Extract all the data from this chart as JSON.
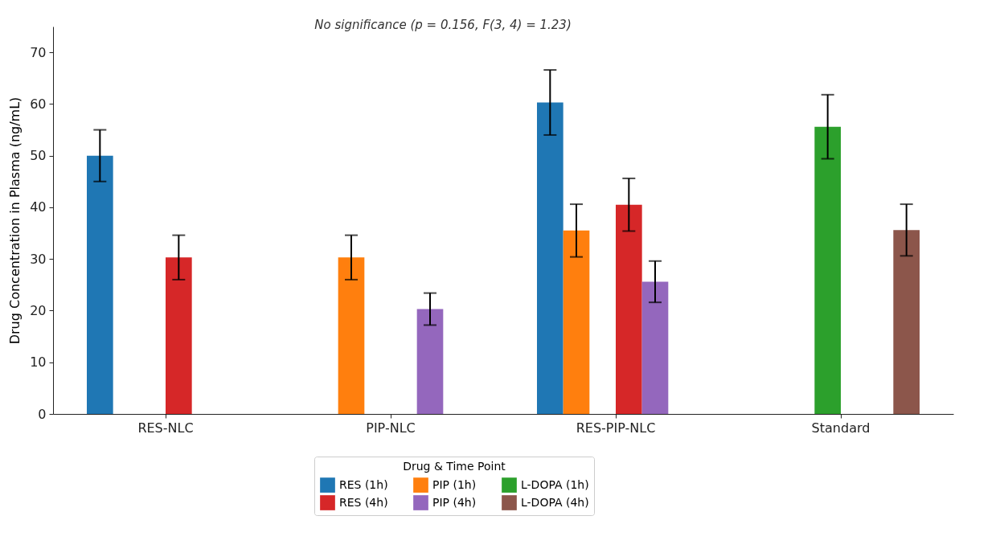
{
  "chart_data": {
    "type": "bar",
    "ylabel": "Drug Concentration in Plasma (ng/mL)",
    "categories": [
      "RES-NLC",
      "PIP-NLC",
      "RES-PIP-NLC",
      "Standard"
    ],
    "ylim": [
      0,
      75
    ],
    "yticks": [
      0,
      10,
      20,
      30,
      40,
      50,
      60,
      70
    ],
    "legend": "bottom",
    "legend_title": "Drug & Time Point",
    "annotations": [
      "No significance (p = 0.156, F(3, 4) = 1.23)"
    ],
    "series": [
      {
        "name": "RES (1h)",
        "color": "#1f77b4",
        "values": [
          50,
          0,
          60.3,
          0
        ],
        "errors": [
          5,
          null,
          6.3,
          null
        ]
      },
      {
        "name": "PIP (1h)",
        "color": "#ff7f0e",
        "values": [
          0,
          30.3,
          35.5,
          0
        ],
        "errors": [
          null,
          4.3,
          5.1,
          null
        ]
      },
      {
        "name": "L-DOPA (1h)",
        "color": "#2ca02c",
        "values": [
          0,
          0,
          0,
          55.6
        ],
        "errors": [
          null,
          null,
          null,
          6.2
        ]
      },
      {
        "name": "RES (4h)",
        "color": "#d62728",
        "values": [
          30.3,
          0,
          40.5,
          0
        ],
        "errors": [
          4.3,
          null,
          5.1,
          null
        ]
      },
      {
        "name": "PIP (4h)",
        "color": "#9467bd",
        "values": [
          0,
          20.3,
          25.6,
          0
        ],
        "errors": [
          null,
          3.1,
          4,
          null
        ]
      },
      {
        "name": "L-DOPA (4h)",
        "color": "#8c564b",
        "values": [
          0,
          0,
          0,
          35.6
        ],
        "errors": [
          null,
          null,
          null,
          5
        ]
      }
    ]
  }
}
